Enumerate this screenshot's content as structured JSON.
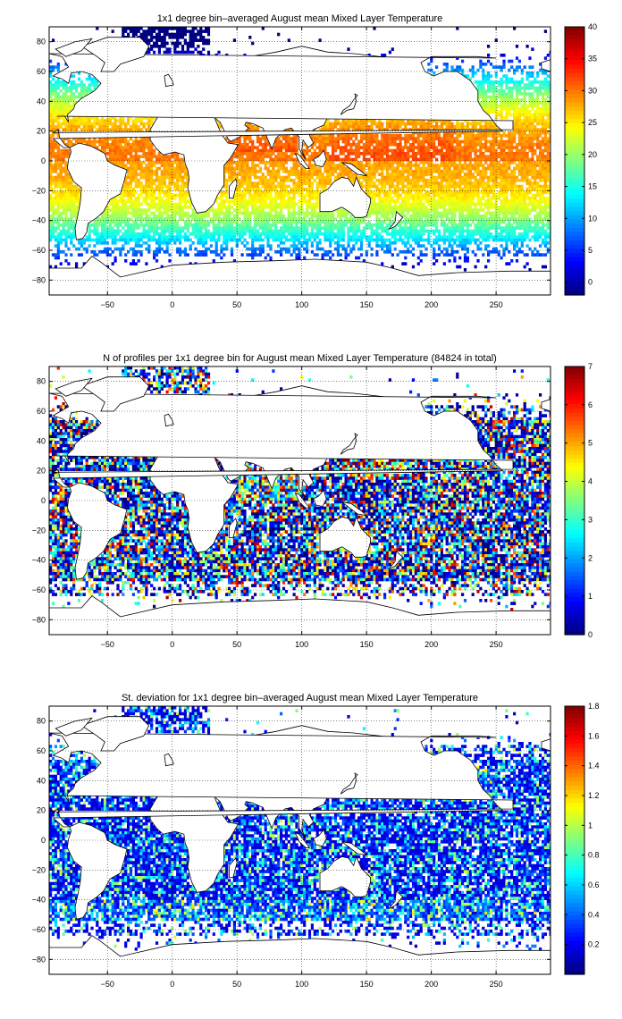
{
  "chart_data": [
    {
      "type": "heatmap",
      "title": "1x1 degree bin–averaged August mean Mixed Layer Temperature",
      "x_ticks": [
        -50,
        0,
        50,
        100,
        150,
        200,
        250
      ],
      "y_ticks": [
        80,
        60,
        40,
        20,
        0,
        -20,
        -40,
        -60,
        -80
      ],
      "xlim": [
        -95,
        292
      ],
      "ylim": [
        -90,
        90
      ],
      "grid": true,
      "colormap": "jet",
      "colorbar": {
        "min": -2,
        "max": 40,
        "ticks": [
          40,
          35,
          30,
          25,
          20,
          15,
          10,
          5,
          0
        ]
      },
      "field": "temperature"
    },
    {
      "type": "heatmap",
      "title": "N of profiles per 1x1 degree bin for August mean Mixed Layer Temperature  (84824 in total)",
      "x_ticks": [
        -50,
        0,
        50,
        100,
        150,
        200,
        250
      ],
      "y_ticks": [
        80,
        60,
        40,
        20,
        0,
        -20,
        -40,
        -60,
        -80
      ],
      "xlim": [
        -95,
        292
      ],
      "ylim": [
        -90,
        90
      ],
      "grid": true,
      "colormap": "jet",
      "colorbar": {
        "min": 0,
        "max": 7,
        "ticks": [
          7,
          6,
          5,
          4,
          3,
          2,
          1,
          0
        ]
      },
      "field": "count"
    },
    {
      "type": "heatmap",
      "title": "St. deviation for 1x1 degree bin–averaged August mean Mixed Layer Temperature",
      "x_ticks": [
        -50,
        0,
        50,
        100,
        150,
        200,
        250
      ],
      "y_ticks": [
        80,
        60,
        40,
        20,
        0,
        -20,
        -40,
        -60,
        -80
      ],
      "xlim": [
        -95,
        292
      ],
      "ylim": [
        -90,
        90
      ],
      "grid": true,
      "colormap": "jet",
      "colorbar": {
        "min": 0,
        "max": 1.8,
        "ticks": [
          1.8,
          1.6,
          1.4,
          1.2,
          1,
          0.8,
          0.6,
          0.4,
          0.2
        ]
      },
      "field": "stddev"
    }
  ]
}
